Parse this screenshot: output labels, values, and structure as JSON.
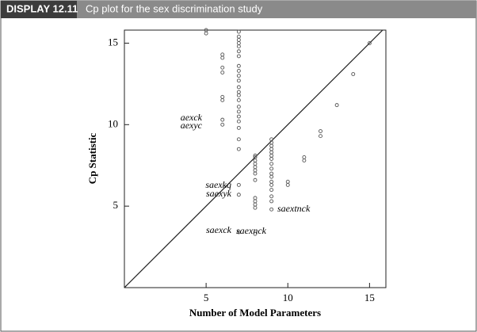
{
  "display": "DISPLAY 12.11",
  "chart_data": {
    "type": "scatter",
    "title": "Cp plot for the sex discrimination study",
    "x_label": "Number of Model Parameters",
    "y_label": "Cp Statistic",
    "xlim": [
      0,
      16
    ],
    "ylim": [
      0,
      15.8
    ],
    "xticks": [
      5,
      10,
      15
    ],
    "yticks": [
      5,
      10,
      15
    ],
    "color": "#555555",
    "reference_line": true,
    "x": [
      5,
      5,
      6,
      6,
      6,
      6,
      6,
      6,
      6,
      6,
      7,
      7,
      7,
      7,
      7,
      7,
      7,
      7,
      7,
      7,
      7,
      7,
      7,
      7,
      7,
      7,
      7,
      7,
      7,
      7,
      7,
      7,
      7,
      7,
      7,
      8,
      8,
      8,
      8,
      8,
      8,
      8,
      8,
      8,
      8,
      8,
      8,
      8,
      9,
      9,
      9,
      9,
      9,
      9,
      9,
      9,
      9,
      9,
      9,
      9,
      9,
      9,
      9,
      9,
      9,
      10,
      10,
      11,
      11,
      12,
      12,
      13,
      14,
      15
    ],
    "values": [
      15.8,
      15.6,
      14.3,
      14.1,
      13.5,
      13.2,
      11.7,
      11.5,
      10.3,
      10.0,
      15.7,
      15.4,
      15.2,
      15.0,
      14.8,
      14.5,
      14.2,
      13.6,
      13.3,
      13.0,
      12.7,
      12.3,
      12.0,
      11.8,
      11.5,
      11.1,
      10.8,
      10.5,
      10.2,
      9.8,
      9.1,
      8.5,
      6.3,
      5.7,
      3.4,
      8.1,
      8.0,
      7.8,
      7.6,
      7.4,
      7.2,
      7.0,
      6.6,
      5.5,
      5.3,
      5.1,
      4.9,
      3.3,
      9.1,
      8.9,
      8.7,
      8.5,
      8.3,
      8.1,
      7.9,
      7.6,
      7.3,
      7.0,
      6.8,
      6.5,
      6.3,
      6.0,
      5.6,
      5.3,
      4.8,
      6.5,
      6.3,
      8.0,
      7.8,
      9.6,
      9.3,
      11.2,
      13.1,
      15.0
    ],
    "annotations": [
      "aexck",
      "aexyc",
      "saexkq",
      "saexyk",
      "saextnck",
      "saexck",
      "saexnck"
    ]
  }
}
